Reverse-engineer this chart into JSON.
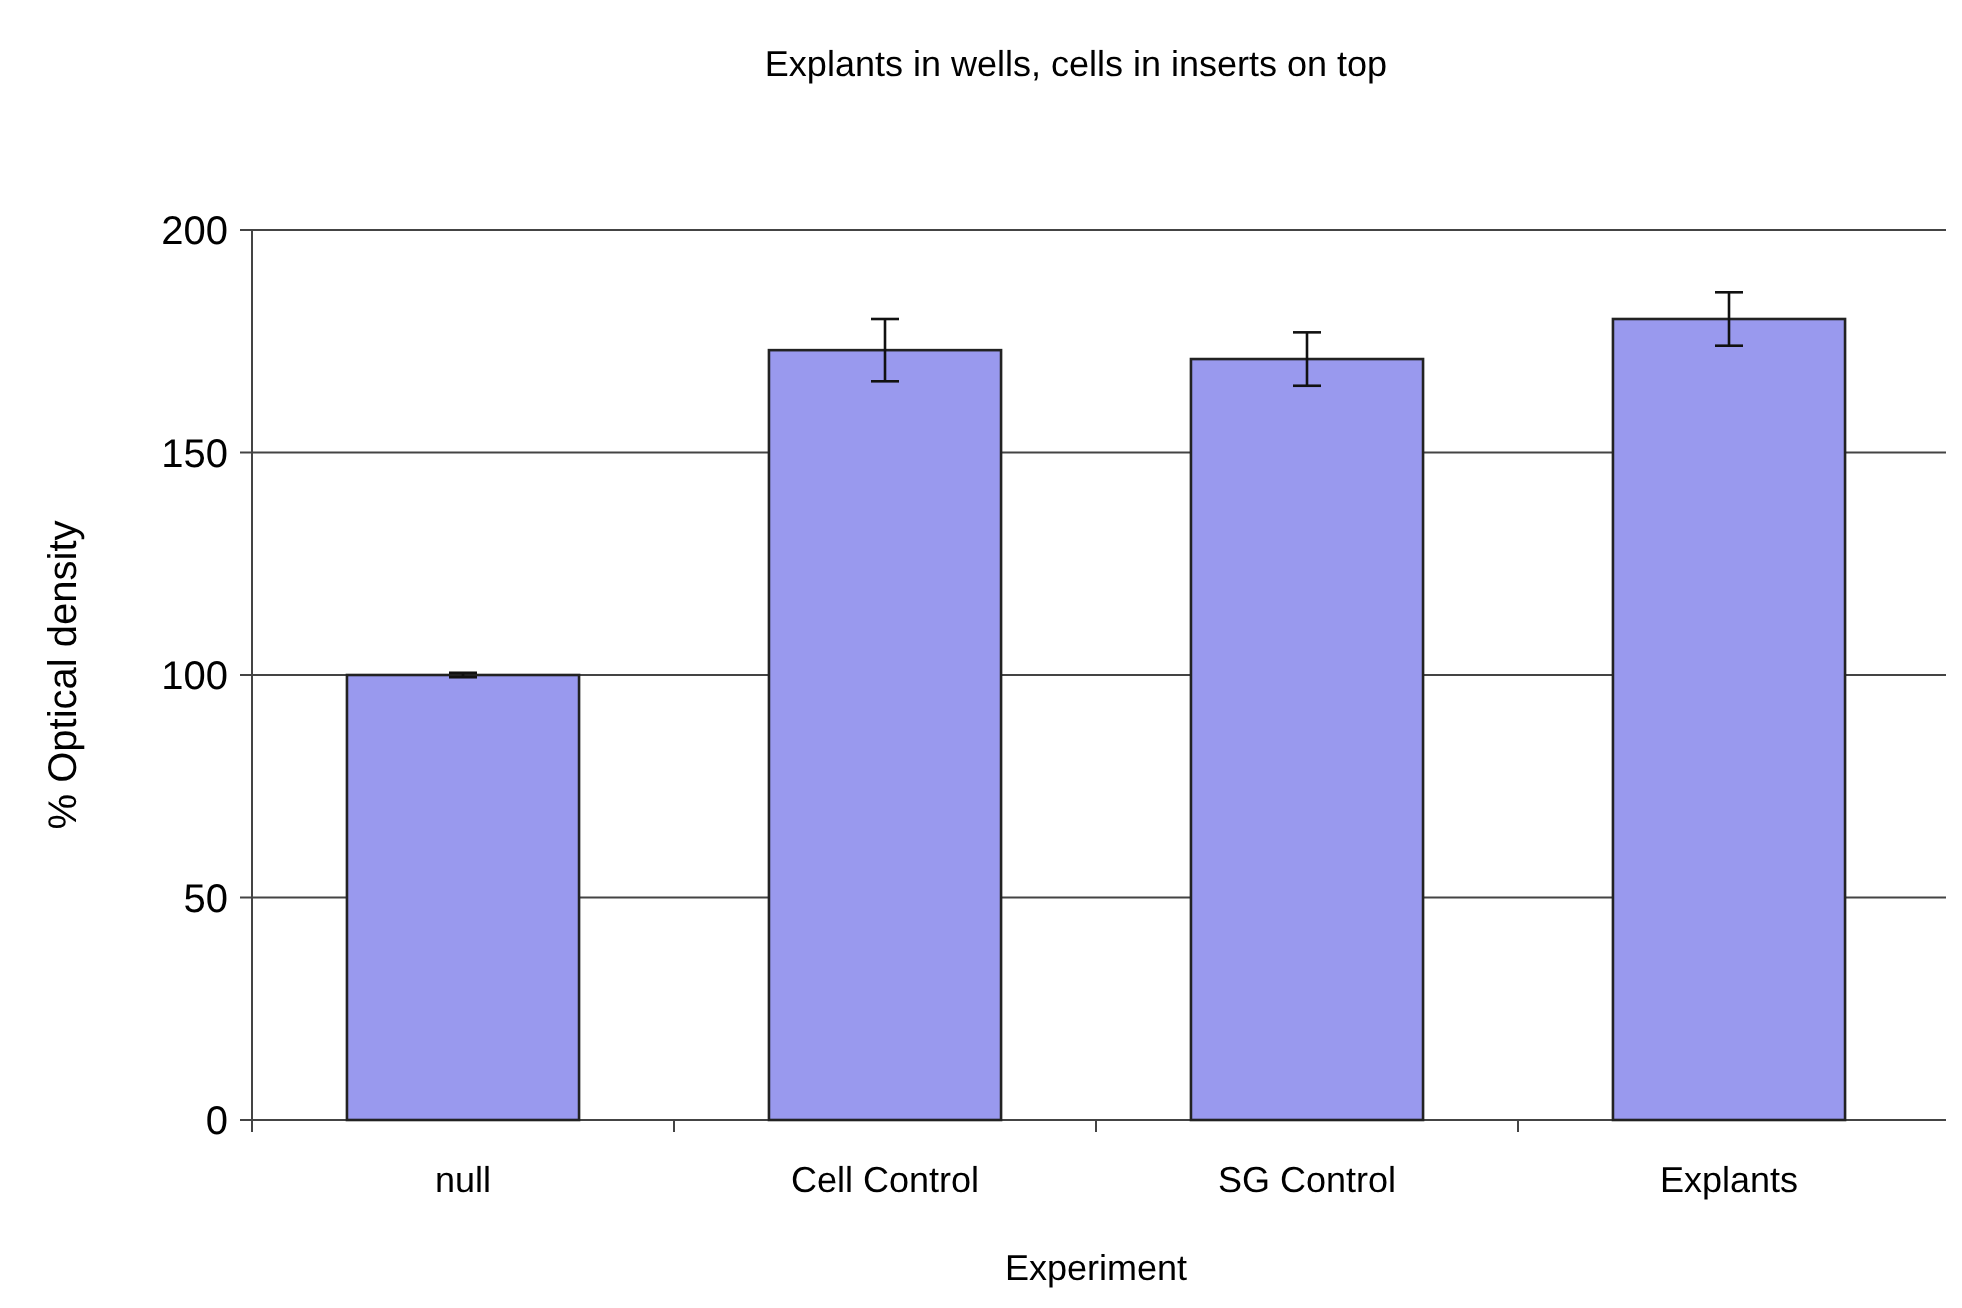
{
  "chart_data": {
    "type": "bar",
    "title": "Explants in wells, cells in inserts on top",
    "xlabel": "Experiment",
    "ylabel": "% Optical density",
    "categories": [
      "null",
      "Cell Control",
      "SG Control",
      "Explants"
    ],
    "values": [
      100,
      173,
      171,
      180
    ],
    "errors": [
      0.5,
      7,
      6,
      6
    ],
    "color": "#9999ee",
    "ylim": [
      0,
      200
    ],
    "yticks": [
      0,
      50,
      100,
      150,
      200
    ],
    "grid": "y"
  }
}
